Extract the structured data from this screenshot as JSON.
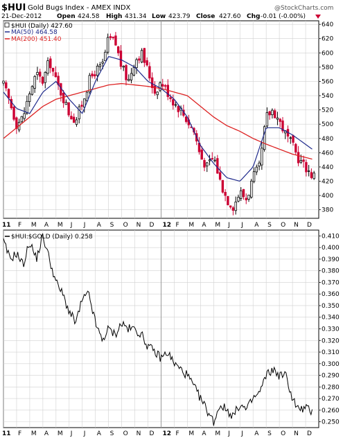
{
  "header": {
    "symbol": "$HUI",
    "name": "Gold Bugs Index - AMEX INDX",
    "date": "21-Dec-2012",
    "open_label": "Open",
    "open": "424.58",
    "high_label": "High",
    "high": "431.34",
    "low_label": "Low",
    "low": "423.79",
    "close_label": "Close",
    "close": "427.60",
    "chg_label": "Chg",
    "chg": "-0.01 (-0.00%)",
    "watermark": "@StockCharts.com"
  },
  "colors": {
    "up": "#000000",
    "down": "#cc0033",
    "ma50": "#1f2a8c",
    "ma200": "#dd2222",
    "grid": "#d0d0d0",
    "divider": "#9a9a9a",
    "ratio": "#000000"
  },
  "chart_data": [
    {
      "type": "candlestick",
      "legend": [
        {
          "label": "$HUI (Daily) 427.60"
        },
        {
          "label": "MA(50) 464.58"
        },
        {
          "label": "MA(200) 451.40"
        }
      ],
      "ylim": [
        368,
        645
      ],
      "yticks": [
        380,
        400,
        420,
        440,
        460,
        480,
        500,
        520,
        540,
        560,
        580,
        600,
        620,
        640
      ],
      "xticks": [
        "11",
        "F",
        "M",
        "A",
        "M",
        "J",
        "J",
        "A",
        "S",
        "O",
        "N",
        "D",
        "12",
        "F",
        "M",
        "A",
        "M",
        "J",
        "J",
        "A",
        "S",
        "O",
        "N",
        "D"
      ],
      "series": [
        {
          "kind": "price",
          "x": [
            0,
            0.5,
            1,
            1.5,
            2,
            2.5,
            3,
            3.5,
            4,
            4.5,
            5,
            5.5,
            6,
            6.5,
            7,
            7.5,
            8,
            8.5,
            9,
            9.5,
            10,
            10.5,
            11,
            11.5,
            12,
            12.5,
            13,
            13.5,
            14,
            14.5,
            15,
            15.5,
            16,
            16.5,
            17,
            17.5,
            18,
            18.5,
            19,
            19.5,
            20,
            20.5,
            21,
            21.5,
            22,
            22.5,
            23,
            23.5
          ],
          "values": [
            555,
            530,
            500,
            510,
            545,
            570,
            560,
            590,
            560,
            540,
            515,
            505,
            530,
            560,
            575,
            580,
            620,
            615,
            580,
            560,
            590,
            600,
            575,
            545,
            560,
            545,
            530,
            520,
            505,
            490,
            455,
            440,
            455,
            420,
            395,
            385,
            405,
            395,
            425,
            440,
            510,
            520,
            505,
            485,
            470,
            450,
            440,
            428
          ]
        },
        {
          "kind": "ma50",
          "x": [
            0,
            1,
            2,
            3,
            4,
            5,
            6,
            7,
            8,
            9,
            10,
            11,
            12,
            13,
            14,
            15,
            16,
            17,
            18,
            19,
            20,
            21,
            22,
            23.5
          ],
          "values": [
            545,
            522,
            515,
            545,
            560,
            535,
            515,
            560,
            595,
            590,
            580,
            560,
            550,
            535,
            510,
            470,
            445,
            425,
            420,
            440,
            495,
            495,
            485,
            465
          ]
        },
        {
          "kind": "ma200",
          "x": [
            0,
            1,
            2,
            3,
            4,
            5,
            6,
            7,
            8,
            9,
            10,
            11,
            12,
            13,
            14,
            15,
            16,
            17,
            18,
            19,
            20,
            21,
            22,
            23.5
          ],
          "values": [
            480,
            495,
            510,
            525,
            535,
            540,
            545,
            550,
            555,
            557,
            555,
            553,
            550,
            545,
            540,
            525,
            510,
            498,
            490,
            480,
            472,
            465,
            458,
            451
          ]
        }
      ]
    },
    {
      "type": "line",
      "legend": [
        {
          "label": "$HUI:$GOLD (Daily) 0.258"
        }
      ],
      "ylim": [
        0.245,
        0.415
      ],
      "yticks": [
        0.25,
        0.26,
        0.27,
        0.28,
        0.29,
        0.3,
        0.31,
        0.32,
        0.33,
        0.34,
        0.35,
        0.36,
        0.37,
        0.38,
        0.39,
        0.4,
        0.41
      ],
      "ytick_labels": [
        "0.250",
        "0.260",
        "0.270",
        "0.280",
        "0.290",
        "0.300",
        "0.310",
        "0.320",
        "0.330",
        "0.340",
        "0.350",
        "0.360",
        "0.370",
        "0.380",
        "0.390",
        "0.400",
        "0.410"
      ],
      "xticks": [
        "11",
        "F",
        "M",
        "A",
        "M",
        "J",
        "J",
        "A",
        "S",
        "O",
        "N",
        "D",
        "12",
        "F",
        "M",
        "A",
        "M",
        "J",
        "J",
        "A",
        "S",
        "O",
        "N",
        "D"
      ],
      "series": [
        {
          "name": "$HUI:$GOLD",
          "x": [
            0,
            0.5,
            1,
            1.5,
            2,
            2.5,
            3,
            3.5,
            4,
            4.5,
            5,
            5.5,
            6,
            6.5,
            7,
            7.5,
            8,
            8.5,
            9,
            9.5,
            10,
            10.5,
            11,
            11.5,
            12,
            12.5,
            13,
            13.5,
            14,
            14.5,
            15,
            15.5,
            16,
            16.5,
            17,
            17.5,
            18,
            18.5,
            19,
            19.5,
            20,
            20.5,
            21,
            21.5,
            22,
            22.5,
            23,
            23.5
          ],
          "values": [
            0.405,
            0.39,
            0.395,
            0.385,
            0.405,
            0.39,
            0.41,
            0.39,
            0.37,
            0.36,
            0.345,
            0.335,
            0.355,
            0.36,
            0.335,
            0.32,
            0.33,
            0.325,
            0.335,
            0.33,
            0.33,
            0.325,
            0.315,
            0.31,
            0.305,
            0.31,
            0.3,
            0.295,
            0.29,
            0.28,
            0.27,
            0.26,
            0.25,
            0.265,
            0.26,
            0.255,
            0.265,
            0.26,
            0.27,
            0.275,
            0.29,
            0.295,
            0.29,
            0.29,
            0.27,
            0.26,
            0.262,
            0.258
          ]
        }
      ]
    }
  ]
}
